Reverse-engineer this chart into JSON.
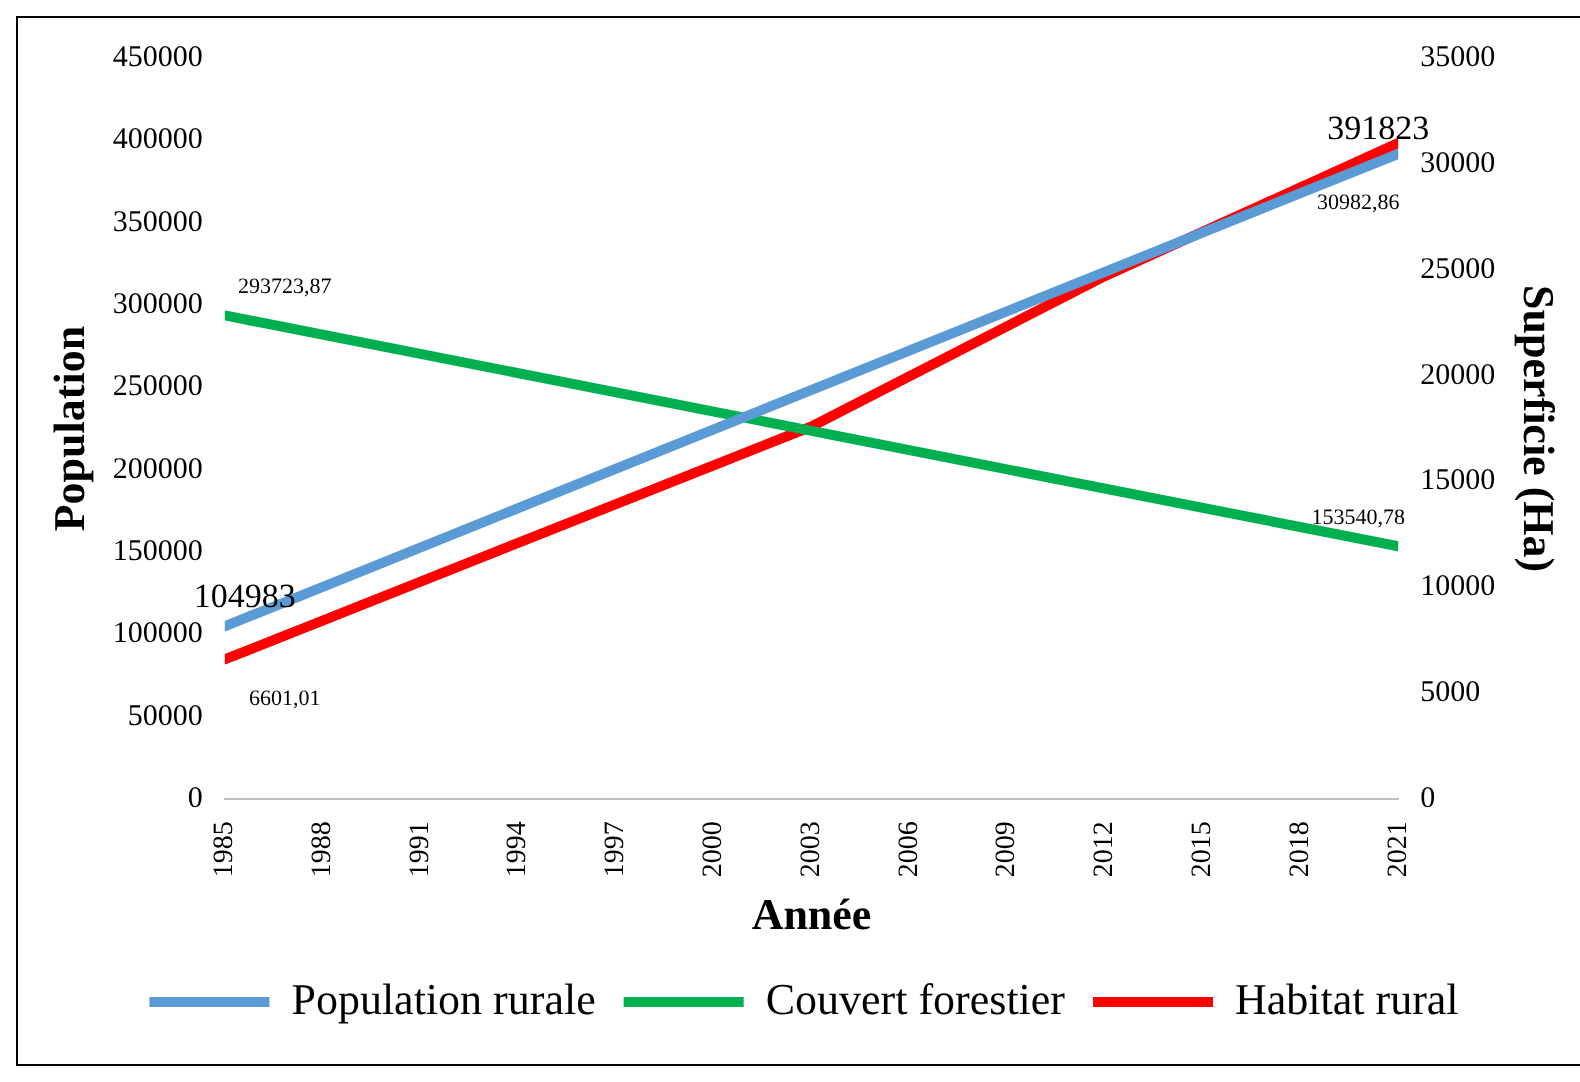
{
  "chart_data": {
    "type": "line",
    "xlabel": "Année",
    "ylabel": "Population",
    "y2label": "Superficie (Ha)",
    "xlim": [
      1985,
      2021
    ],
    "xticks": [
      1985,
      1988,
      1991,
      1994,
      1997,
      2000,
      2003,
      2006,
      2009,
      2012,
      2015,
      2018,
      2021
    ],
    "ylim": [
      0,
      450000
    ],
    "yticks": [
      0,
      50000,
      100000,
      150000,
      200000,
      250000,
      300000,
      350000,
      400000,
      450000
    ],
    "y2lim": [
      0,
      35000
    ],
    "y2ticks": [
      0,
      5000,
      10000,
      15000,
      20000,
      25000,
      30000,
      35000
    ],
    "legend": "bottom",
    "grid": false,
    "marker": "none",
    "line_style": "solid",
    "series": [
      {
        "name": "Population rurale",
        "color": "#5b9bd5",
        "x": [
          1985,
          2021
        ],
        "values": [
          104983,
          391823
        ],
        "value_labels": [
          "104983",
          "391823"
        ]
      },
      {
        "name": "Couvert forestier",
        "color": "#00b050",
        "x": [
          1985,
          2021
        ],
        "values": [
          293723.87,
          153540.78
        ],
        "value_labels": [
          "293723,87",
          "153540,78"
        ]
      },
      {
        "name": "Habitat rural",
        "color": "#ff0000",
        "axis": "y2",
        "x": [
          1985,
          2003,
          2012,
          2021
        ],
        "values": [
          6601.01,
          17600,
          24700,
          30982.86
        ],
        "value_labels": [
          "6601,01",
          null,
          null,
          "30982,86"
        ]
      }
    ]
  }
}
